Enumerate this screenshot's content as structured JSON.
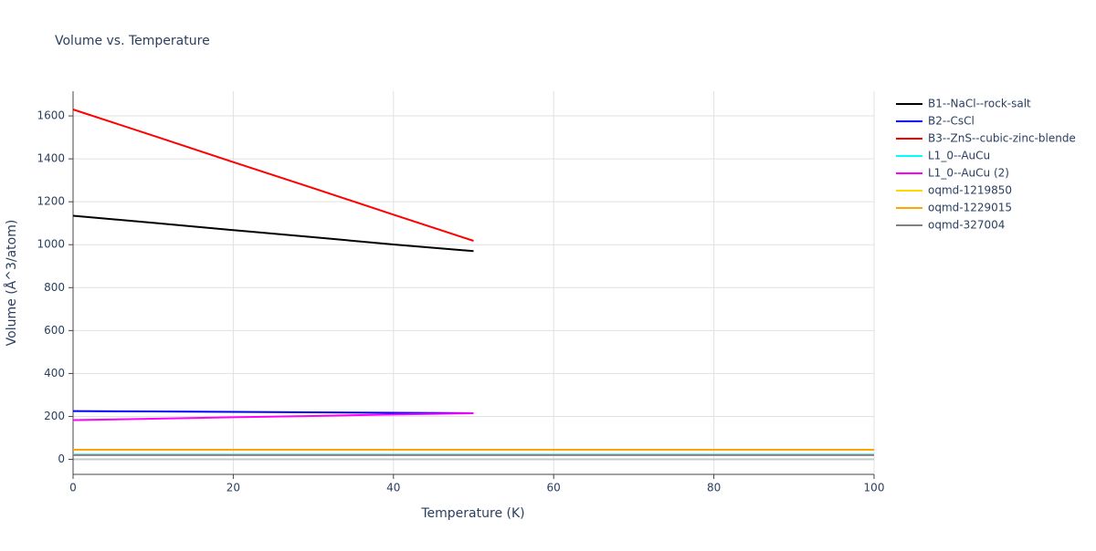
{
  "chart_data": {
    "type": "line",
    "title": "Volume vs. Temperature",
    "x_label": "Temperature (K)",
    "y_label": "Volume (Å^3/atom)",
    "xlim": [
      0,
      100
    ],
    "xticks": [
      0,
      20,
      40,
      60,
      80,
      100
    ],
    "ylim": [
      -70,
      1715
    ],
    "yticks": [
      0,
      200,
      400,
      600,
      800,
      1000,
      1200,
      1400,
      1600
    ],
    "grid": true,
    "legend": "right",
    "series": [
      {
        "name": "B1--NaCl--rock-salt",
        "color": "#000000",
        "x": [
          0,
          10,
          20,
          30,
          40,
          50
        ],
        "values": [
          1135,
          1102,
          1068,
          1035,
          1001,
          970
        ]
      },
      {
        "name": "B2--CsCl",
        "color": "#0000ff",
        "x": [
          0,
          10,
          20,
          30,
          40,
          50
        ],
        "values": [
          225,
          223,
          221,
          219,
          217,
          215
        ]
      },
      {
        "name": "B3--ZnS--cubic-zinc-blende",
        "color": "#ff0000",
        "x": [
          0,
          10,
          20,
          30,
          40,
          50
        ],
        "values": [
          1630,
          1508,
          1385,
          1263,
          1140,
          1018
        ]
      },
      {
        "name": "L1_0--AuCu",
        "color": "#00ffff",
        "x": [
          0,
          100
        ],
        "values": [
          22,
          22
        ]
      },
      {
        "name": "L1_0--AuCu (2)",
        "color": "#ff00ff",
        "x": [
          0,
          10,
          20,
          30,
          40,
          50
        ],
        "values": [
          183,
          189,
          196,
          202,
          209,
          215
        ]
      },
      {
        "name": "oqmd-1219850",
        "color": "#ffd700",
        "x": [
          0,
          100
        ],
        "values": [
          45,
          45
        ]
      },
      {
        "name": "oqmd-1229015",
        "color": "#ffa500",
        "x": [
          0,
          100
        ],
        "values": [
          45,
          45
        ]
      },
      {
        "name": "oqmd-327004",
        "color": "#808080",
        "x": [
          0,
          100
        ],
        "values": [
          20,
          20
        ]
      }
    ]
  }
}
